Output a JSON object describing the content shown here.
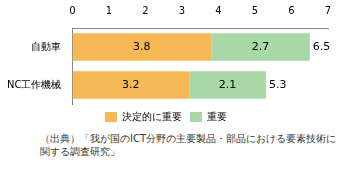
{
  "chart_data": {
    "type": "bar",
    "orientation": "horizontal",
    "stacked": true,
    "categories": [
      "自動車",
      "NC工作機械"
    ],
    "series": [
      {
        "name": "決定的に重要",
        "color": "#f7b955",
        "values": [
          3.8,
          3.2
        ]
      },
      {
        "name": "重要",
        "color": "#a8d8a8",
        "values": [
          2.7,
          2.1
        ]
      }
    ],
    "totals": [
      6.5,
      5.3
    ],
    "xlim": [
      0,
      7
    ],
    "xticks": [
      0,
      1,
      2,
      3,
      4,
      5,
      6,
      7
    ],
    "grid": false,
    "data_labels": true,
    "legend": "bottom",
    "source": "（出典）「我が国のICT分野の主要製品・部品における要素技術に関する調査研究」"
  }
}
